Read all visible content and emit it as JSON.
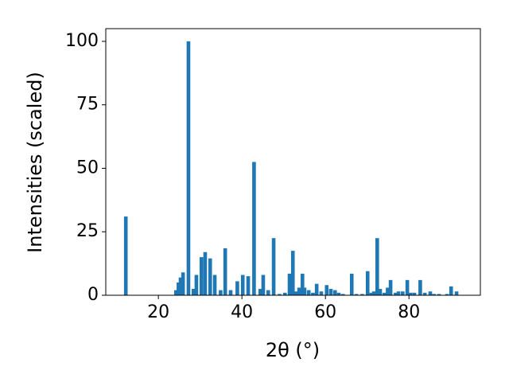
{
  "chart_data": {
    "type": "bar",
    "xlabel": "2θ (°)",
    "ylabel": "Intensities (scaled)",
    "color": "#1f77b4",
    "x": [
      12.2,
      24.2,
      24.8,
      25.3,
      25.9,
      27.2,
      28.4,
      29.1,
      30.3,
      31.2,
      32.4,
      33.5,
      34.9,
      36.0,
      37.3,
      38.9,
      40.2,
      41.5,
      42.9,
      44.4,
      45.1,
      46.3,
      47.6,
      49.0,
      50.3,
      51.4,
      52.2,
      53.0,
      53.7,
      54.5,
      55.0,
      56.0,
      57.0,
      57.9,
      59.0,
      60.3,
      61.3,
      62.3,
      63.2,
      64.2,
      66.3,
      67.4,
      68.8,
      70.1,
      71.0,
      71.6,
      72.4,
      73.1,
      74.1,
      74.9,
      75.6,
      76.8,
      77.5,
      78.5,
      79.6,
      80.4,
      81.3,
      82.7,
      83.8,
      85.1,
      86.0,
      87.2,
      89.1,
      90.1,
      91.4
    ],
    "values": [
      31,
      2,
      5,
      7,
      9,
      100,
      2.5,
      8,
      15,
      17,
      14.5,
      8,
      2,
      18.5,
      2,
      5.5,
      8,
      7.5,
      52.5,
      2.5,
      8,
      2,
      22.5,
      0.5,
      1,
      8.5,
      17.5,
      1.5,
      3,
      8.5,
      3,
      2,
      1,
      4.5,
      1.5,
      4,
      2.5,
      2,
      1,
      0.5,
      8.5,
      0.5,
      0.5,
      9.5,
      1,
      1.5,
      22.5,
      2.5,
      1,
      3,
      6,
      1,
      1.5,
      1.5,
      6,
      1,
      1,
      6,
      1,
      1.5,
      0.5,
      0.5,
      0.5,
      3.5,
      1.5
    ],
    "xlim": [
      7.4,
      97.1
    ],
    "ylim": [
      0,
      105
    ],
    "xticks": [
      20,
      40,
      60,
      80
    ],
    "yticks": [
      0,
      25,
      50,
      75,
      100
    ]
  }
}
